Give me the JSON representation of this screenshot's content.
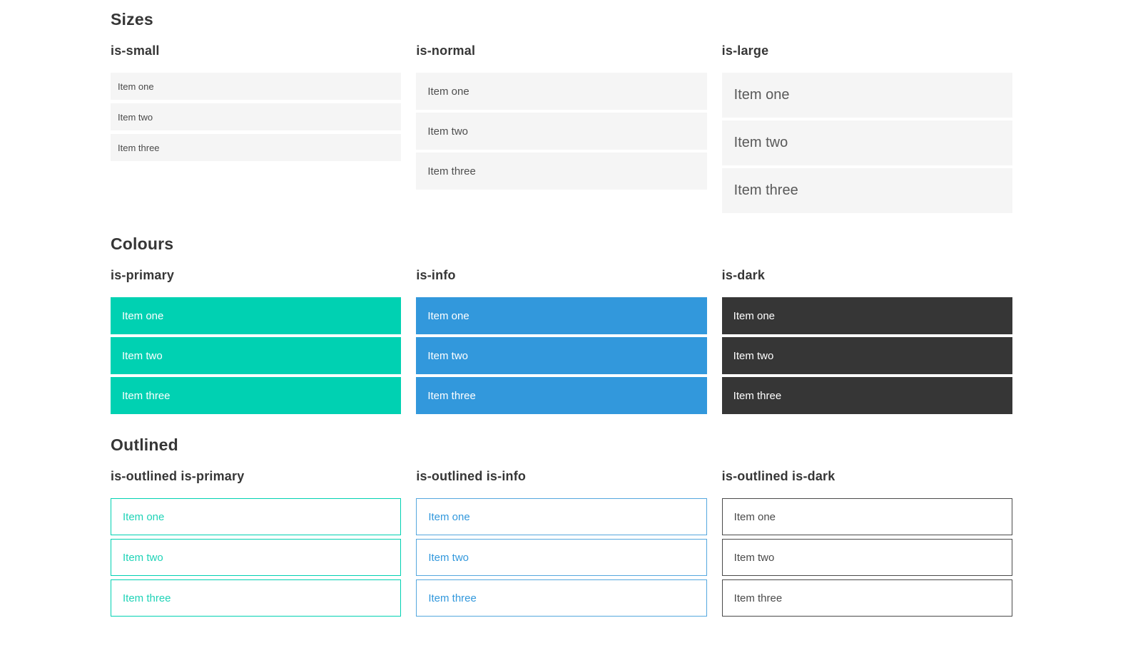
{
  "colors": {
    "primary": "#00d1b2",
    "info": "#3298dc",
    "dark": "#363636",
    "light_item_bg": "#f5f5f5",
    "item_text": "#4a4a4a",
    "heading_text": "#363636",
    "page_bg": "#ffffff"
  },
  "sections": [
    {
      "title": "Sizes",
      "groups": [
        {
          "label": "is-small",
          "items": [
            "Item one",
            "Item two",
            "Item three"
          ]
        },
        {
          "label": "is-normal",
          "items": [
            "Item one",
            "Item two",
            "Item three"
          ]
        },
        {
          "label": "is-large",
          "items": [
            "Item one",
            "Item two",
            "Item three"
          ]
        }
      ]
    },
    {
      "title": "Colours",
      "groups": [
        {
          "label": "is-primary",
          "items": [
            "Item one",
            "Item two",
            "Item three"
          ]
        },
        {
          "label": "is-info",
          "items": [
            "Item one",
            "Item two",
            "Item three"
          ]
        },
        {
          "label": "is-dark",
          "items": [
            "Item one",
            "Item two",
            "Item three"
          ]
        }
      ]
    },
    {
      "title": "Outlined",
      "groups": [
        {
          "label": "is-outlined is-primary",
          "items": [
            "Item one",
            "Item two",
            "Item three"
          ]
        },
        {
          "label": "is-outlined is-info",
          "items": [
            "Item one",
            "Item two",
            "Item three"
          ]
        },
        {
          "label": "is-outlined is-dark",
          "items": [
            "Item one",
            "Item two",
            "Item three"
          ]
        }
      ]
    }
  ]
}
